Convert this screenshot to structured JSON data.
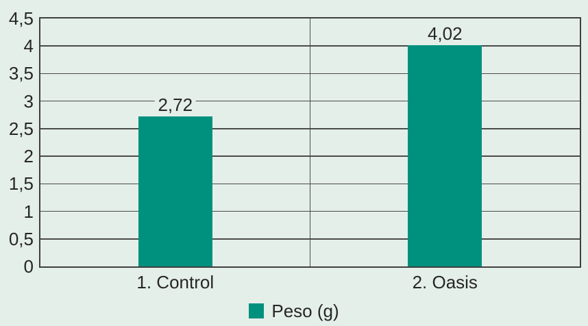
{
  "chart_data": {
    "type": "bar",
    "title": "",
    "categories": [
      "1. Control",
      "2. Oasis"
    ],
    "values": [
      2.72,
      4.02
    ],
    "value_labels": [
      "2,72",
      "4,02"
    ],
    "series": [
      {
        "name": "Peso (g)",
        "values": [
          2.72,
          4.02
        ]
      }
    ],
    "legend": {
      "label": "Peso (g)",
      "position": "bottom-center"
    },
    "xlabel": "",
    "ylabel": "",
    "ylim": [
      0,
      4.5
    ],
    "ytick_step": 0.5,
    "yticks": [
      4.5,
      4,
      3.5,
      3,
      2.5,
      2,
      1.5,
      1,
      0.5,
      0
    ],
    "ytick_labels": [
      "4,5",
      "4",
      "3,5",
      "3",
      "2,5",
      "2",
      "1,5",
      "1",
      "0,5",
      "0"
    ],
    "grid": "horizontal",
    "decimal_separator": ","
  },
  "colors": {
    "bar": "#00917E",
    "background": "#E4EFE9",
    "gridline": "#4A4A4A",
    "border": "#3F3F3F",
    "text": "#262626"
  }
}
